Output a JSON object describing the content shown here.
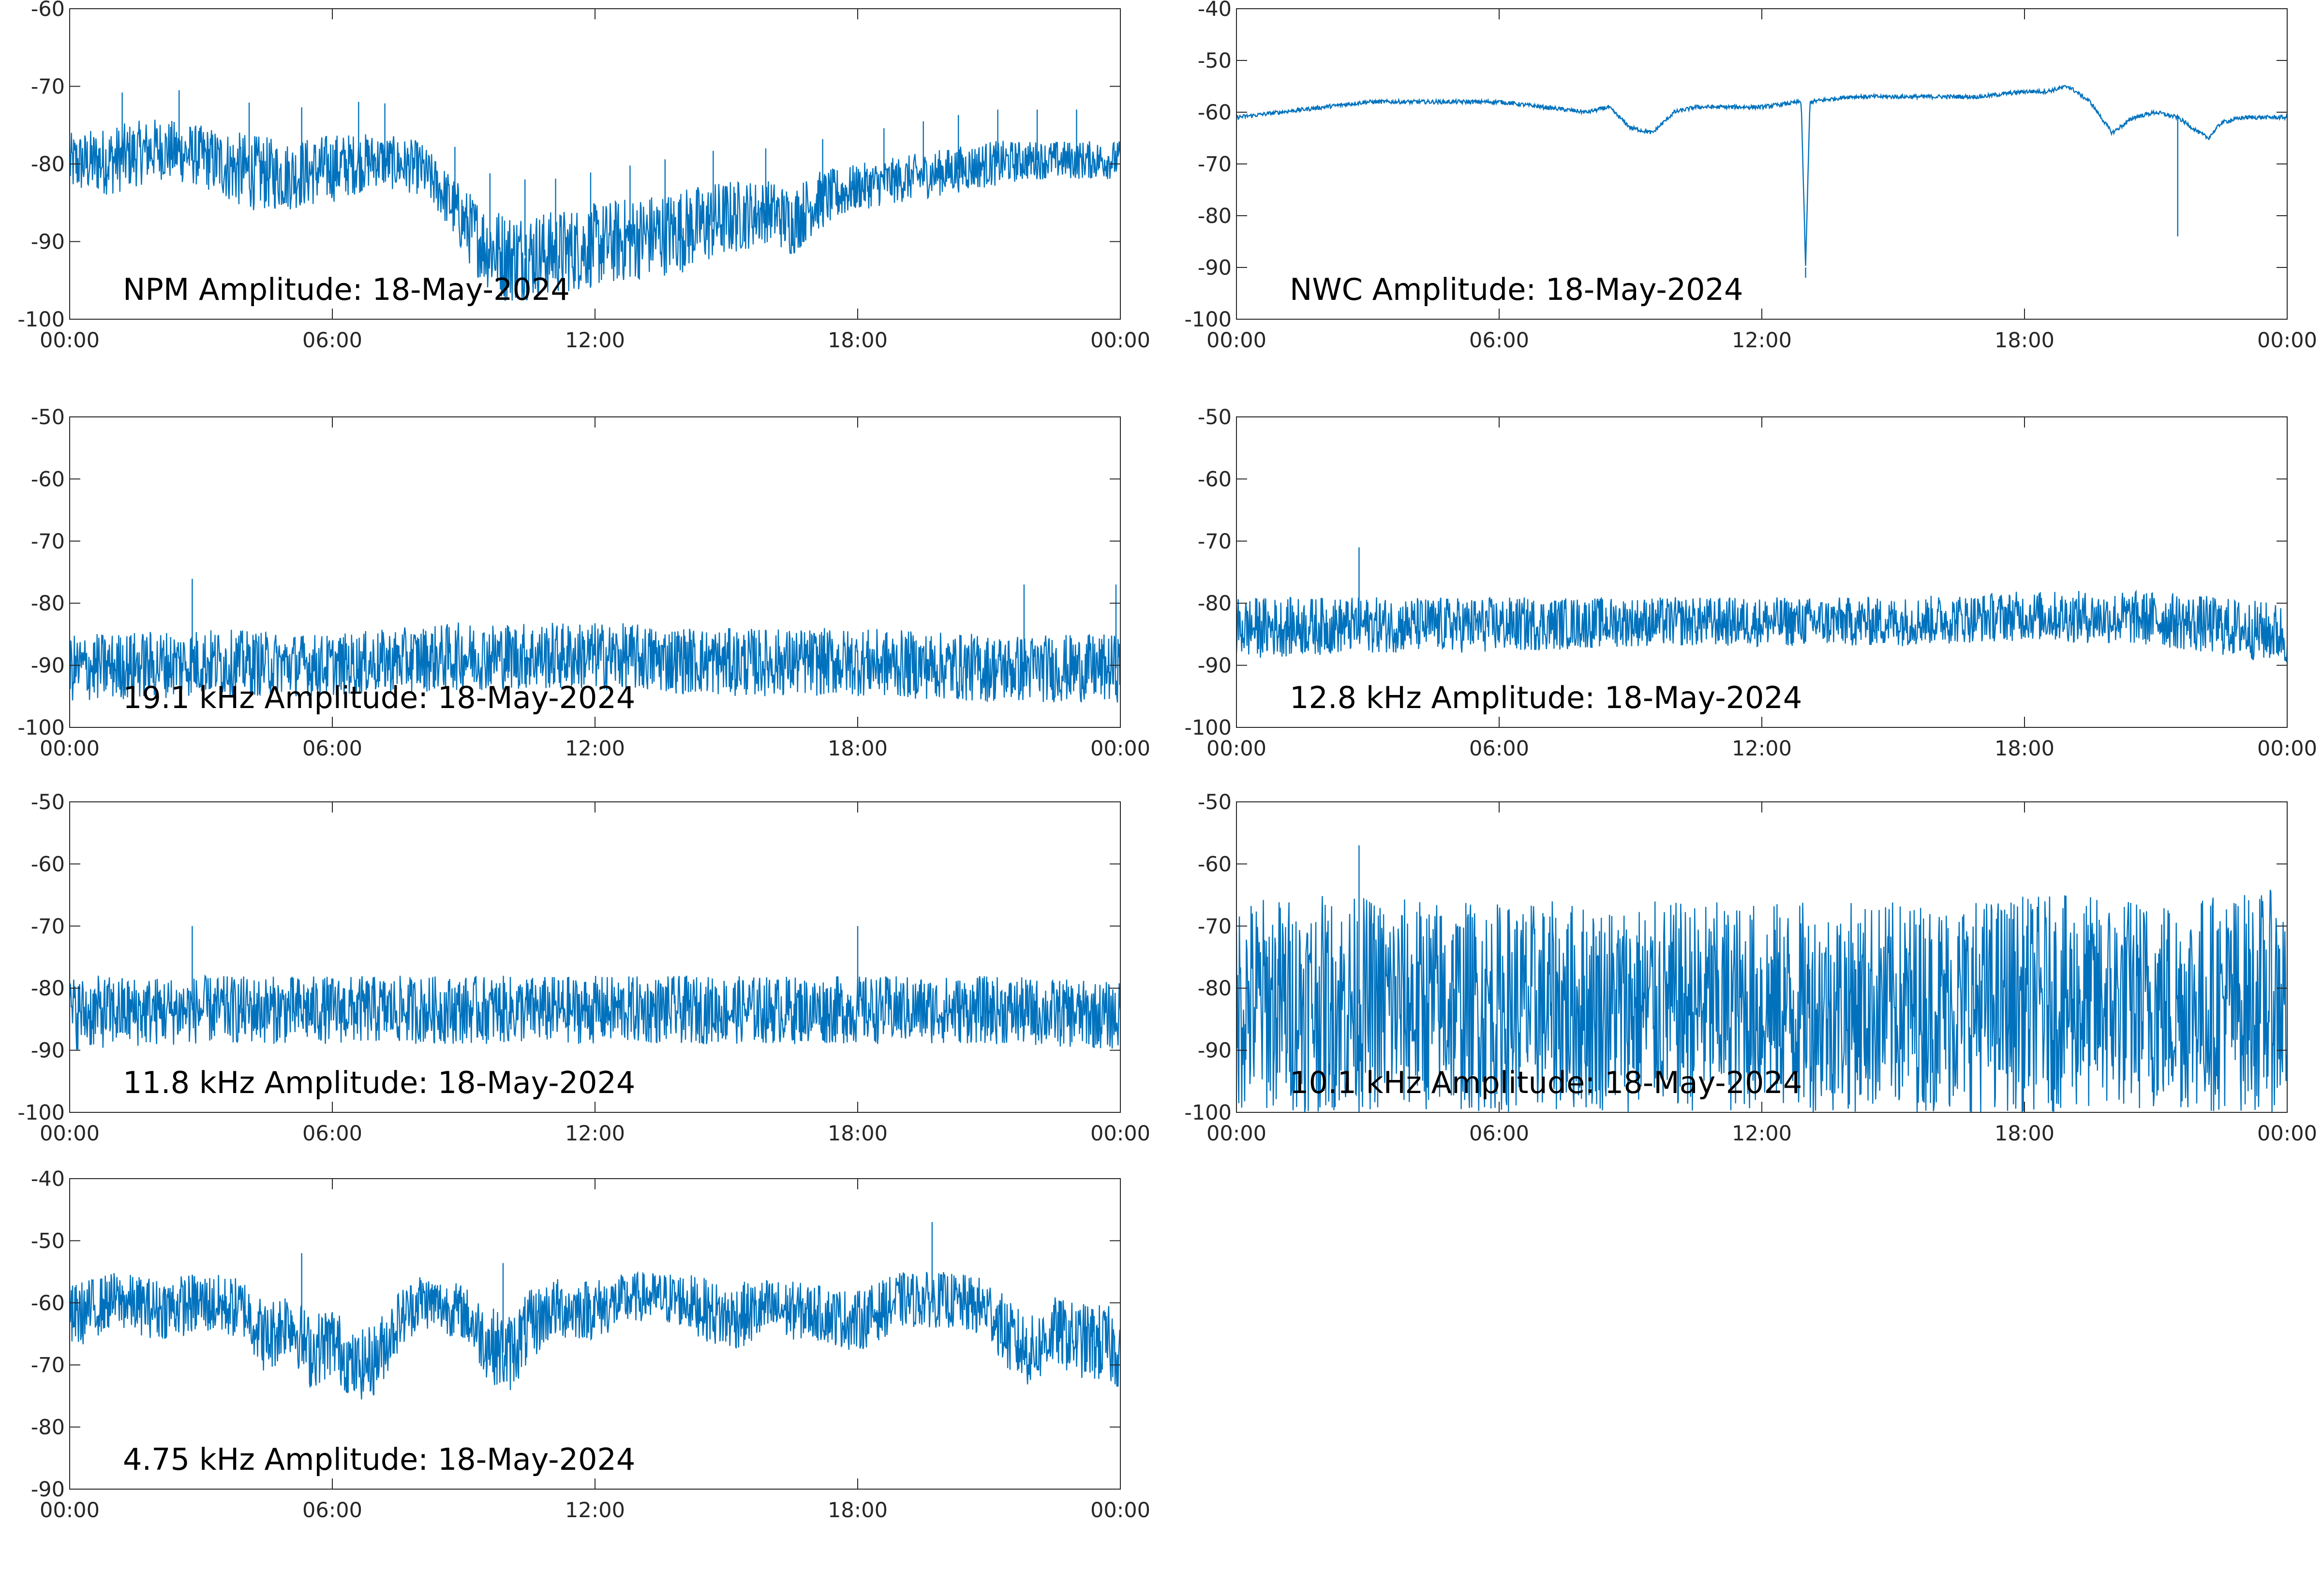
{
  "chart_data": [
    {
      "type": "line",
      "title": "NPM Amplitude: 18-May-2024",
      "xlabel": "",
      "ylabel": "",
      "x_ticks": [
        "00:00",
        "06:00",
        "12:00",
        "18:00",
        "00:00"
      ],
      "ylim": [
        -100,
        -60
      ],
      "y_ticks": [
        -100,
        -90,
        -80,
        -70,
        -60
      ],
      "grid": false,
      "color": "#0072BD",
      "series": [
        {
          "x_hours": [
            0,
            1,
            2,
            3,
            4,
            5,
            6,
            7,
            8,
            8.5,
            9,
            9.5,
            10,
            11,
            12,
            13,
            14,
            15,
            16,
            16.5,
            17,
            18,
            19,
            20,
            21,
            22,
            23,
            24
          ],
          "envelope_low": [
            -84,
            -84,
            -82,
            -83,
            -86,
            -86,
            -85,
            -83,
            -84,
            -87,
            -92,
            -96,
            -98,
            -97,
            -96,
            -95,
            -94,
            -92,
            -90,
            -92,
            -89,
            -86,
            -85,
            -84,
            -83,
            -82,
            -82,
            -82
          ],
          "envelope_high": [
            -76,
            -75,
            -74,
            -75,
            -76,
            -77,
            -76,
            -76,
            -77,
            -80,
            -83,
            -85,
            -86,
            -86,
            -85,
            -84,
            -83,
            -82,
            -82,
            -83,
            -81,
            -80,
            -79,
            -78,
            -77,
            -77,
            -77,
            -77
          ]
        }
      ],
      "spikes_hours": [
        1.2,
        2.5,
        4.1,
        5.3,
        6.6,
        7.2,
        8.8,
        9.6,
        10.4,
        11.1,
        11.9,
        12.8,
        13.6,
        14.7,
        15.9,
        17.2,
        18.6,
        19.5,
        20.3,
        21.2,
        22.1,
        23.0
      ]
    },
    {
      "type": "line",
      "title": "NWC Amplitude: 18-May-2024",
      "xlabel": "",
      "ylabel": "",
      "x_ticks": [
        "00:00",
        "06:00",
        "12:00",
        "18:00",
        "00:00"
      ],
      "ylim": [
        -100,
        -40
      ],
      "y_ticks": [
        -100,
        -90,
        -80,
        -70,
        -60,
        -50,
        -40
      ],
      "grid": false,
      "color": "#0072BD",
      "series": [
        {
          "x_hours": [
            0,
            1,
            2,
            3,
            4,
            5,
            6,
            7,
            8,
            8.5,
            9,
            9.5,
            10,
            10.5,
            11,
            12,
            12.9,
            13,
            13.1,
            14,
            15,
            16,
            17,
            18,
            18.5,
            19,
            19.5,
            20,
            20.5,
            21,
            21.5,
            22,
            22.2,
            22.5,
            23,
            24
          ],
          "values": [
            -61,
            -60,
            -59,
            -58,
            -58,
            -58,
            -58,
            -59,
            -60,
            -59,
            -63,
            -64,
            -60,
            -59,
            -59,
            -59,
            -58,
            -90,
            -58,
            -57,
            -57,
            -57,
            -57,
            -56,
            -56,
            -55,
            -58,
            -64,
            -61,
            -60,
            -61,
            -64,
            -65,
            -62,
            -61,
            -61
          ]
        }
      ],
      "spikes_hours": [
        13.0,
        21.5
      ]
    },
    {
      "type": "line",
      "title": "19.1 kHz Amplitude: 18-May-2024",
      "xlabel": "",
      "ylabel": "",
      "x_ticks": [
        "00:00",
        "06:00",
        "12:00",
        "18:00",
        "00:00"
      ],
      "ylim": [
        -100,
        -50
      ],
      "y_ticks": [
        -100,
        -90,
        -80,
        -70,
        -60,
        -50
      ],
      "grid": false,
      "color": "#0072BD",
      "series": [
        {
          "x_hours": [
            0,
            3,
            6,
            9,
            12,
            15,
            18,
            21,
            24
          ],
          "envelope_low": [
            -96,
            -95,
            -95,
            -94,
            -94,
            -95,
            -95,
            -96,
            -96
          ],
          "envelope_high": [
            -85,
            -84,
            -85,
            -83,
            -83,
            -84,
            -84,
            -85,
            -85
          ]
        }
      ],
      "spikes_hours": [
        2.8,
        21.8,
        23.9
      ]
    },
    {
      "type": "line",
      "title": "12.8 kHz Amplitude: 18-May-2024",
      "xlabel": "",
      "ylabel": "",
      "x_ticks": [
        "00:00",
        "06:00",
        "12:00",
        "18:00",
        "00:00"
      ],
      "ylim": [
        -100,
        -50
      ],
      "y_ticks": [
        -100,
        -90,
        -80,
        -70,
        -60,
        -50
      ],
      "grid": false,
      "color": "#0072BD",
      "series": [
        {
          "x_hours": [
            0,
            3,
            6,
            9,
            12,
            15,
            18,
            21,
            24
          ],
          "envelope_low": [
            -89,
            -88,
            -88,
            -87,
            -87,
            -87,
            -86,
            -87,
            -90
          ],
          "envelope_high": [
            -79,
            -79,
            -79,
            -79,
            -79,
            -79,
            -78,
            -78,
            -80
          ]
        }
      ],
      "spikes_hours": [
        2.8
      ]
    },
    {
      "type": "line",
      "title": "11.8 kHz Amplitude: 18-May-2024",
      "xlabel": "",
      "ylabel": "",
      "x_ticks": [
        "00:00",
        "06:00",
        "12:00",
        "18:00",
        "00:00"
      ],
      "ylim": [
        -100,
        -50
      ],
      "y_ticks": [
        -100,
        -90,
        -80,
        -70,
        -60,
        -50
      ],
      "grid": false,
      "color": "#0072BD",
      "series": [
        {
          "x_hours": [
            0,
            3,
            6,
            9,
            12,
            15,
            18,
            21,
            24
          ],
          "envelope_low": [
            -90,
            -89,
            -89,
            -89,
            -89,
            -89,
            -89,
            -89,
            -90
          ],
          "envelope_high": [
            -78,
            -78,
            -78,
            -78,
            -78,
            -78,
            -78,
            -78,
            -79
          ]
        }
      ],
      "spikes_hours": [
        2.8,
        18.0
      ]
    },
    {
      "type": "line",
      "title": "10.1 kHz Amplitude: 18-May-2024",
      "xlabel": "",
      "ylabel": "",
      "x_ticks": [
        "00:00",
        "06:00",
        "12:00",
        "18:00",
        "00:00"
      ],
      "ylim": [
        -100,
        -50
      ],
      "y_ticks": [
        -100,
        -90,
        -80,
        -70,
        -60,
        -50
      ],
      "grid": false,
      "color": "#0072BD",
      "series": [
        {
          "x_hours": [
            0,
            3,
            6,
            9,
            12,
            15,
            18,
            21,
            24
          ],
          "envelope_low": [
            -100,
            -100,
            -100,
            -100,
            -100,
            -100,
            -100,
            -100,
            -100
          ],
          "envelope_high": [
            -65,
            -65,
            -66,
            -66,
            -66,
            -66,
            -65,
            -65,
            -64
          ]
        }
      ],
      "spikes_hours": [
        2.8
      ]
    },
    {
      "type": "line",
      "title": "4.75 kHz Amplitude: 18-May-2024",
      "xlabel": "",
      "ylabel": "",
      "x_ticks": [
        "00:00",
        "06:00",
        "12:00",
        "18:00",
        "00:00"
      ],
      "ylim": [
        -90,
        -40
      ],
      "y_ticks": [
        -90,
        -80,
        -70,
        -60,
        -50,
        -40
      ],
      "grid": false,
      "color": "#0072BD",
      "series": [
        {
          "x_hours": [
            0,
            1,
            2,
            3,
            4,
            4.5,
            5,
            5.5,
            6,
            6.5,
            7,
            7.5,
            8,
            9,
            9.5,
            10,
            10.5,
            11,
            12,
            13,
            14,
            15,
            16,
            17,
            18,
            19,
            20,
            21,
            21.5,
            22,
            22.5,
            23,
            23.5,
            24
          ],
          "envelope_low": [
            -68,
            -64,
            -66,
            -65,
            -66,
            -72,
            -68,
            -74,
            -72,
            -76,
            -75,
            -68,
            -64,
            -66,
            -72,
            -75,
            -70,
            -66,
            -66,
            -63,
            -64,
            -68,
            -66,
            -66,
            -68,
            -64,
            -64,
            -66,
            -72,
            -74,
            -70,
            -72,
            -73,
            -74
          ],
          "envelope_high": [
            -57,
            -55,
            -56,
            -55,
            -56,
            -60,
            -57,
            -62,
            -60,
            -65,
            -63,
            -58,
            -55,
            -57,
            -60,
            -62,
            -58,
            -56,
            -56,
            -55,
            -55,
            -57,
            -56,
            -57,
            -58,
            -55,
            -55,
            -56,
            -60,
            -62,
            -59,
            -60,
            -60,
            -61
          ]
        }
      ],
      "spikes_hours": [
        5.3,
        9.9,
        19.7
      ]
    }
  ]
}
